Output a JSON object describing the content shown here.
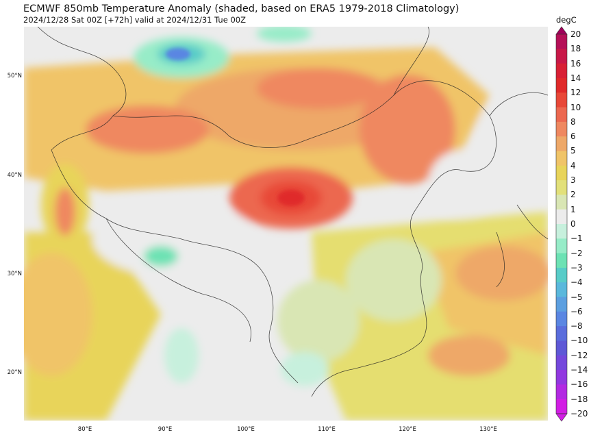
{
  "title": "ECMWF 850mb Temperature Anomaly (shaded, based on ERA5 1979-2018 Climatology)",
  "subtitle": "2024/12/28 Sat 00Z [+72h] valid at 2024/12/31 Tue 00Z",
  "map": {
    "lat_labels": [
      "50°N",
      "40°N",
      "30°N",
      "20°N"
    ],
    "lon_labels": [
      "80°E",
      "90°E",
      "100°E",
      "110°E",
      "120°E",
      "130°E"
    ]
  },
  "colorbar": {
    "unit": "degC",
    "levels": [
      "20",
      "18",
      "16",
      "14",
      "12",
      "10",
      "8",
      "6",
      "5",
      "4",
      "3",
      "2",
      "1",
      "0",
      "−1",
      "−2",
      "−3",
      "−4",
      "−5",
      "−6",
      "−8",
      "−10",
      "−12",
      "−14",
      "−16",
      "−18",
      "−20"
    ],
    "colors": [
      "#a0005a",
      "#b51058",
      "#c81848",
      "#d82035",
      "#e02a2a",
      "#e84838",
      "#ec6850",
      "#ef8860",
      "#eea868",
      "#f0c468",
      "#e8d45a",
      "#e2e07a",
      "#d9e6b4",
      "#ececec",
      "#c7f0dd",
      "#97ecc8",
      "#6de2b4",
      "#58ccc8",
      "#5ab8dc",
      "#5c9fe0",
      "#5a86e2",
      "#5a6ddc",
      "#5e58d6",
      "#7448dc",
      "#9238e0",
      "#b22ae2",
      "#d21ee4"
    ]
  }
}
